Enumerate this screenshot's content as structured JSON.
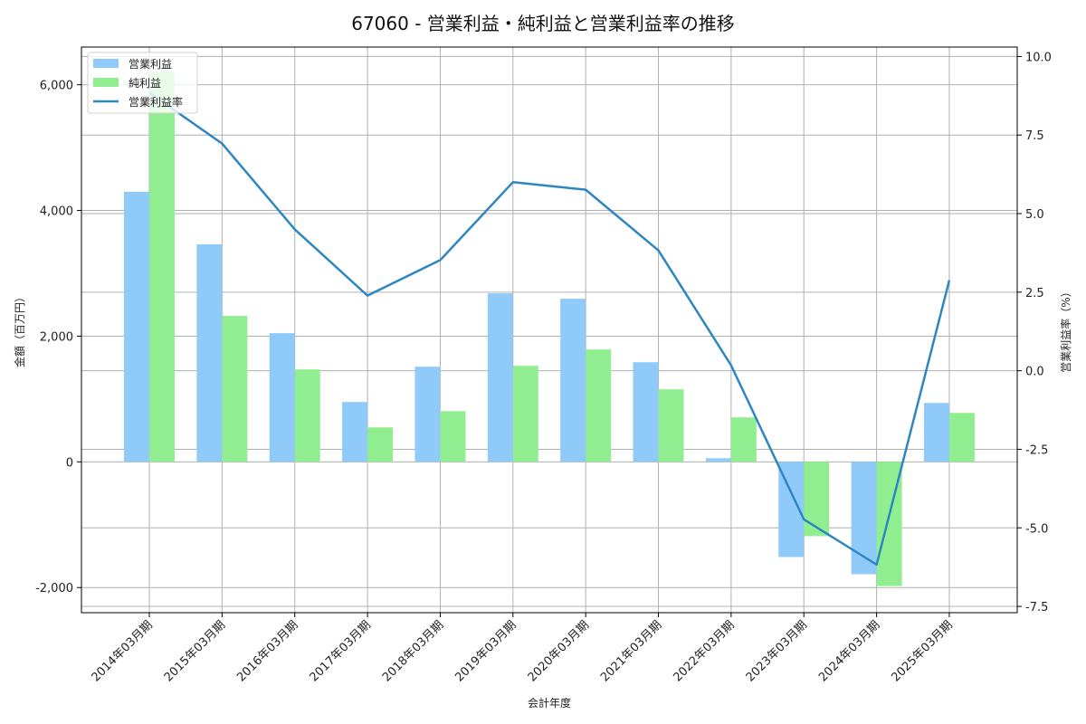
{
  "chart_data": {
    "type": "bar",
    "title": "67060 - 営業利益・純利益と営業利益率の推移",
    "xlabel": "会計年度",
    "ylabel": "金額（百万円）",
    "y2label": "営業利益率（%）",
    "categories": [
      "2014年03月期",
      "2015年03月期",
      "2016年03月期",
      "2017年03月期",
      "2018年03月期",
      "2019年03月期",
      "2020年03月期",
      "2021年03月期",
      "2022年03月期",
      "2023年03月期",
      "2024年03月期",
      "2025年03月期"
    ],
    "series": [
      {
        "name": "営業利益",
        "type": "bar",
        "axis": "left",
        "color": "#90caf9",
        "values": [
          4297,
          3461,
          2048,
          952,
          1514,
          2682,
          2596,
          1586,
          58,
          -1514,
          -1788,
          937
        ]
      },
      {
        "name": "純利益",
        "type": "bar",
        "axis": "left",
        "color": "#90ee90",
        "values": [
          6210,
          2322,
          1471,
          548,
          807,
          1528,
          1788,
          1154,
          707,
          -1182,
          -1976,
          779
        ]
      },
      {
        "name": "営業利益率",
        "type": "line",
        "axis": "right",
        "color": "#2e86c1",
        "values": [
          8.85,
          7.23,
          4.5,
          2.39,
          3.52,
          6.0,
          5.76,
          3.83,
          0.17,
          -4.73,
          -6.17,
          2.88
        ]
      }
    ],
    "ylim": [
      -2400,
      6600
    ],
    "y2lim": [
      -7.7,
      10.3
    ],
    "yticks": [
      -2000,
      0,
      2000,
      4000,
      6000
    ],
    "ytick_labels": [
      "-2,000",
      "0",
      "2,000",
      "4,000",
      "6,000"
    ],
    "y2ticks": [
      -7.5,
      -5.0,
      -2.5,
      0.0,
      2.5,
      5.0,
      7.5,
      10.0
    ],
    "y2tick_labels": [
      "-7.5",
      "-5.0",
      "-2.5",
      "0.0",
      "2.5",
      "5.0",
      "7.5",
      "10.0"
    ],
    "grid": true,
    "legend_position": "upper left"
  }
}
